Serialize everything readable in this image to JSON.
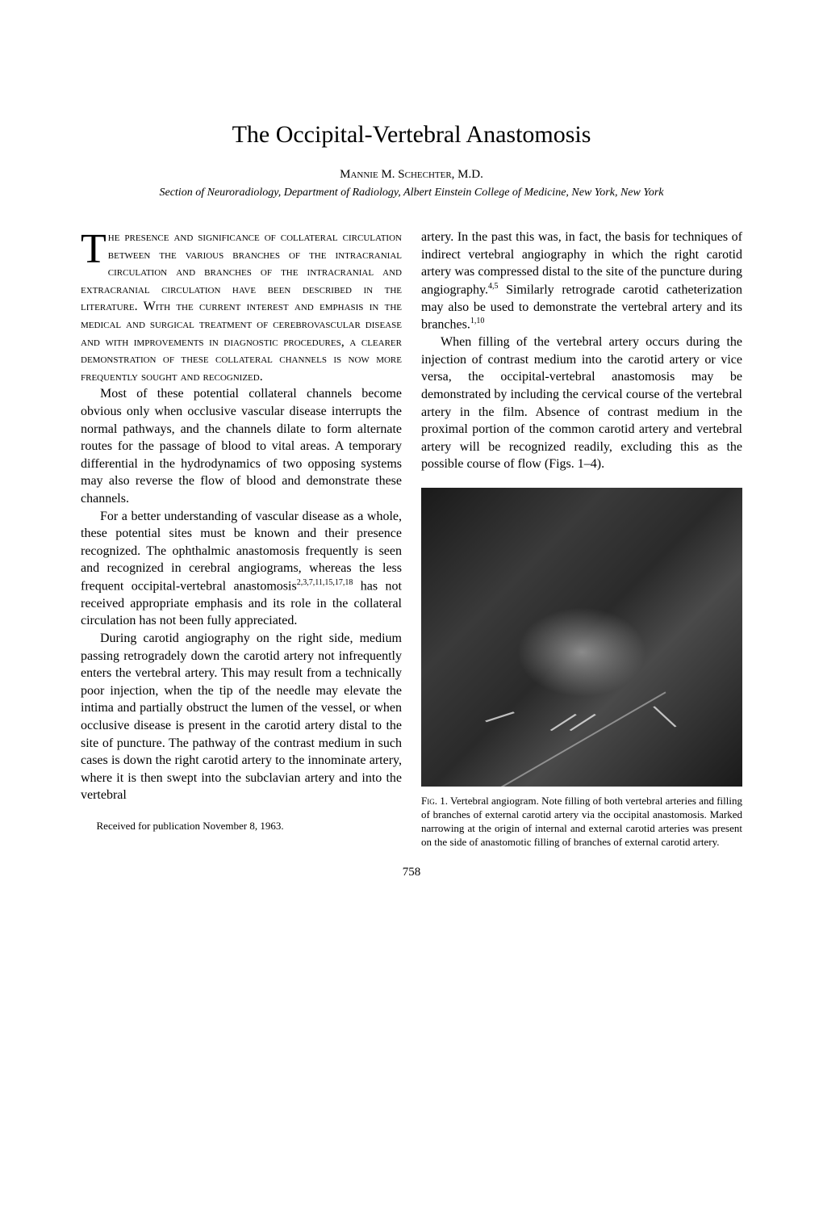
{
  "title": "The Occipital-Vertebral Anastomosis",
  "author": "Mannie M. Schechter, M.D.",
  "affiliation": "Section of Neuroradiology, Department of Radiology, Albert Einstein College of Medicine, New York, New York",
  "dropcap": "T",
  "col1": {
    "p1_rest": "he presence and significance of collateral circulation between the various branches of the intracranial circulation and branches of the intracranial and extracranial circulation have been described in the literature. With the current interest and emphasis in the medical and surgical treatment of cerebrovascular disease and with improvements in diagnostic procedures, a clearer demonstration of these collateral channels is now more frequently sought and recognized.",
    "p2": "Most of these potential collateral channels become obvious only when occlusive vascular disease interrupts the normal pathways, and the channels dilate to form alternate routes for the passage of blood to vital areas. A temporary differential in the hydrodynamics of two opposing systems may also reverse the flow of blood and demonstrate these channels.",
    "p3_a": "For a better understanding of vascular disease as a whole, these potential sites must be known and their presence recognized. The ophthalmic anastomosis frequently is seen and recognized in cerebral angiograms, whereas the less frequent occipital-vertebral anastomosis",
    "p3_sup": "2,3,7,11,15,17,18",
    "p3_b": " has not received appropriate emphasis and its role in the collateral circulation has not been fully appreciated.",
    "p4": "During carotid angiography on the right side, medium passing retrogradely down the carotid artery not infrequently enters the vertebral artery. This may result from a technically poor injection, when the tip of the needle may elevate the intima and partially obstruct the lumen of the vessel, or when occlusive disease is present in the carotid artery distal to the site of puncture. The pathway of the contrast medium in such cases is down the right carotid artery to the innominate artery, where it is then swept into the subclavian artery and into the vertebral",
    "received": "Received for publication November 8, 1963."
  },
  "col2": {
    "p1_a": "artery. In the past this was, in fact, the basis for techniques of indirect vertebral angiography in which the right carotid artery was compressed distal to the site of the puncture during angiography.",
    "p1_sup1": "4,5",
    "p1_b": " Similarly retrograde carotid catheterization may also be used to demonstrate the vertebral artery and its branches.",
    "p1_sup2": "1,10",
    "p2": "When filling of the vertebral artery occurs during the injection of contrast medium into the carotid artery or vice versa, the occipital-vertebral anastomosis may be demonstrated by including the cervical course of the vertebral artery in the film. Absence of contrast medium in the proximal portion of the common carotid artery and vertebral artery will be recognized readily, excluding this as the possible course of flow (Figs. 1–4).",
    "fig_label": "Fig. 1.",
    "fig_caption": " Vertebral angiogram. Note filling of both vertebral arteries and filling of branches of external carotid artery via the occipital anastomosis. Marked narrowing at the origin of internal and external carotid arteries was present on the side of anastomotic filling of branches of external carotid artery."
  },
  "page_number": "758"
}
